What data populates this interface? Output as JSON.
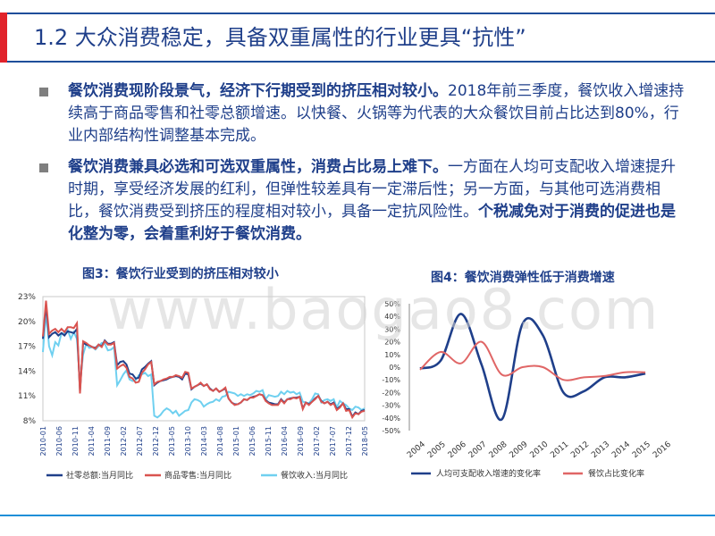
{
  "title": "1.2 大众消费稳定，具备双重属性的行业更具“抗性”",
  "bullets": [
    {
      "bold": "餐饮消费现阶段景气，经济下行期受到的挤压相对较小。",
      "text": "2018年前三季度，餐饮收入增速持续高于商品零售和社零总额增速。以快餐、火锅等为代表的大众餐饮目前占比达到80%，行业内部结构性调整基本完成。",
      "tail": ""
    },
    {
      "bold": "餐饮消费兼具必选和可选双重属性，消费占比易上难下。",
      "text": "一方面在人均可支配收入增速提升时期，享受经济发展的红利，但弹性较差具有一定滞后性；另一方面，与其他可选消费相比，餐饮消费受到挤压的程度相对较小，具备一定抗风险性。",
      "tail": "个税减免对于消费的促进也是化整为零，会着重利好于餐饮消费。"
    }
  ],
  "watermark": "www.baogao8.com",
  "chart_data": [
    {
      "type": "line",
      "title": "图3：餐饮行业受到的挤压相对较小",
      "y_ticks": [
        "23%",
        "20%",
        "17%",
        "14%",
        "11%",
        "8%"
      ],
      "ylim": [
        8,
        23
      ],
      "x_ticks": [
        "2010-01",
        "2010-06",
        "2010-11",
        "2011-04",
        "2011-09",
        "2012-02",
        "2012-07",
        "2012-12",
        "2013-05",
        "2013-10",
        "2014-03",
        "2014-08",
        "2015-01",
        "2015-06",
        "2015-11",
        "2016-04",
        "2016-09",
        "2017-02",
        "2017-07",
        "2017-12",
        "2018-05"
      ],
      "series": [
        {
          "name": "社零总额:当月同比",
          "color": "#1f3f8a",
          "values": [
            17.9,
            22.0,
            18.1,
            18.5,
            18.7,
            18.3,
            18.6,
            18.3,
            18.8,
            18.7,
            18.6,
            19.1,
            11.6,
            17.4,
            17.2,
            17.1,
            16.9,
            16.8,
            17.2,
            17.0,
            17.7,
            17.3,
            17.3,
            17.5,
            14.7,
            15.1,
            15.2,
            14.8,
            13.7,
            13.6,
            13.1,
            13.2,
            14.2,
            14.5,
            14.9,
            15.2,
            12.3,
            12.6,
            12.8,
            12.9,
            13.0,
            13.2,
            13.3,
            13.4,
            13.3,
            13.0,
            13.7,
            13.6,
            11.8,
            12.1,
            12.3,
            12.5,
            12.2,
            12.4,
            11.9,
            11.6,
            11.9,
            11.5,
            11.7,
            11.9,
            10.7,
            10.2,
            10.0,
            10.0,
            10.2,
            10.6,
            10.5,
            10.8,
            10.9,
            11.0,
            11.2,
            11.1,
            10.5,
            10.2,
            10.1,
            10.0,
            10.0,
            10.6,
            10.2,
            10.6,
            10.7,
            10.8,
            10.8,
            10.9,
            9.5,
            10.2,
            10.0,
            10.3,
            10.7,
            11.0,
            10.4,
            10.1,
            10.3,
            10.0,
            10.2,
            9.4,
            9.7,
            10.1,
            9.4,
            9.4,
            8.5,
            9.0,
            8.8,
            9.2,
            9.3
          ]
        },
        {
          "name": "商品零售:当月同比",
          "color": "#d9534f",
          "values": [
            18.2,
            22.5,
            18.5,
            18.9,
            19.1,
            18.7,
            19.1,
            18.7,
            19.3,
            19.3,
            19.2,
            19.8,
            11.3,
            17.6,
            17.4,
            17.1,
            16.9,
            16.7,
            17.2,
            16.9,
            17.6,
            17.2,
            17.2,
            17.4,
            14.3,
            14.6,
            14.8,
            14.4,
            13.3,
            13.1,
            12.6,
            12.7,
            13.8,
            14.2,
            14.8,
            15.1,
            12.4,
            12.7,
            12.8,
            13.0,
            13.1,
            13.3,
            13.3,
            13.5,
            13.4,
            13.2,
            13.9,
            13.8,
            11.9,
            12.1,
            12.3,
            12.6,
            12.2,
            12.4,
            11.8,
            11.6,
            11.9,
            11.5,
            11.7,
            12.0,
            10.7,
            10.2,
            9.9,
            10.0,
            10.2,
            10.6,
            10.5,
            10.8,
            10.8,
            11.0,
            11.2,
            11.1,
            10.4,
            10.1,
            9.9,
            9.9,
            9.9,
            10.5,
            10.1,
            10.6,
            10.6,
            10.8,
            10.7,
            10.9,
            9.4,
            10.2,
            9.9,
            10.3,
            10.6,
            11.0,
            10.3,
            10.1,
            10.3,
            9.9,
            10.1,
            9.3,
            9.6,
            10.1,
            9.2,
            9.3,
            8.4,
            8.9,
            8.8,
            9.1,
            9.2
          ]
        },
        {
          "name": "餐饮收入:当月同比",
          "color": "#6fd0f0",
          "values": [
            16.3,
            21.2,
            17.0,
            15.9,
            17.5,
            17.1,
            18.6,
            18.5,
            19.0,
            17.9,
            18.7,
            17.9,
            12.5,
            16.0,
            17.3,
            16.8,
            16.9,
            16.6,
            17.0,
            17.4,
            17.3,
            16.5,
            16.6,
            16.9,
            12.3,
            12.9,
            13.6,
            14.1,
            13.0,
            12.8,
            12.9,
            13.5,
            13.6,
            13.8,
            13.4,
            13.6,
            8.6,
            8.4,
            8.7,
            9.2,
            9.5,
            9.3,
            8.9,
            9.2,
            8.6,
            8.9,
            9.2,
            9.3,
            10.2,
            10.6,
            10.5,
            10.3,
            9.7,
            10.0,
            10.2,
            10.3,
            10.6,
            10.4,
            10.9,
            11.0,
            11.5,
            11.4,
            11.3,
            11.0,
            11.2,
            11.0,
            11.2,
            11.1,
            11.3,
            11.6,
            11.5,
            11.7,
            10.6,
            11.1,
            11.0,
            10.9,
            11.0,
            11.5,
            11.2,
            11.6,
            11.4,
            11.5,
            11.2,
            11.4,
            10.3,
            10.2,
            10.1,
            10.6,
            11.3,
            11.2,
            10.2,
            10.5,
            10.6,
            10.4,
            10.6,
            9.6,
            10.4,
            10.1,
            9.9,
            9.5,
            9.3,
            9.7,
            9.6,
            9.3,
            9.5
          ]
        }
      ]
    },
    {
      "type": "line",
      "title": "图4：餐饮消费弹性低于消费增速",
      "y_ticks": [
        "50%",
        "40%",
        "30%",
        "20%",
        "10%",
        "0%",
        "-10%",
        "-20%",
        "-30%",
        "-40%",
        "-50%"
      ],
      "ylim": [
        -50,
        50
      ],
      "categories": [
        "2004",
        "2005",
        "2006",
        "2007",
        "2008",
        "2009",
        "2010",
        "2011",
        "2012",
        "2013",
        "2014",
        "2015",
        "2016"
      ],
      "series": [
        {
          "name": "人均可支配收入增速的变化率",
          "color": "#1f3f8a",
          "values": [
            -1,
            5,
            42,
            2,
            -41,
            34,
            25,
            -20,
            -19,
            -8,
            -8,
            -5,
            null
          ]
        },
        {
          "name": "餐饮占比变化率",
          "color": "#e06666",
          "values": [
            -2,
            12,
            3,
            20,
            -6,
            0,
            0,
            -10,
            -8,
            -7,
            -4,
            -4,
            null
          ]
        }
      ]
    }
  ]
}
